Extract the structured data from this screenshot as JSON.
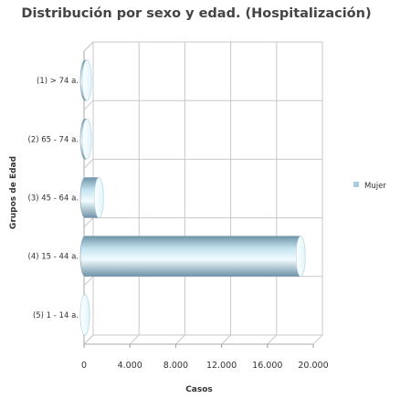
{
  "chart_data": {
    "type": "bar",
    "orientation": "horizontal",
    "title": "Distribución por sexo y edad. (Hospitalización)",
    "xlabel": "Casos",
    "ylabel": "Grupos de Edad",
    "categories": [
      "(1) > 74 a.",
      "(2) 65 - 74 a.",
      "(3) 45 - 64 a.",
      "(4) 15 - 44 a.",
      "(5) 1 - 14 a."
    ],
    "series": [
      {
        "name": "Mujer",
        "values": [
          250,
          250,
          1300,
          18900,
          0
        ]
      }
    ],
    "xlim": [
      0,
      20000
    ],
    "xticks": [
      0,
      4000,
      8000,
      12000,
      16000,
      20000
    ],
    "xtick_labels": [
      "0",
      "4.000",
      "8.000",
      "12.000",
      "16.000",
      "20.000"
    ],
    "grid": true,
    "legend_position": "right",
    "style": "3d-cylinder",
    "colors": {
      "bar_dark": "#6f93a8",
      "bar_mid": "#c4e2ef",
      "bar_light": "#f2fcff",
      "legend_swatch": "#a9cde0",
      "grid": "#c8c8c8"
    }
  }
}
